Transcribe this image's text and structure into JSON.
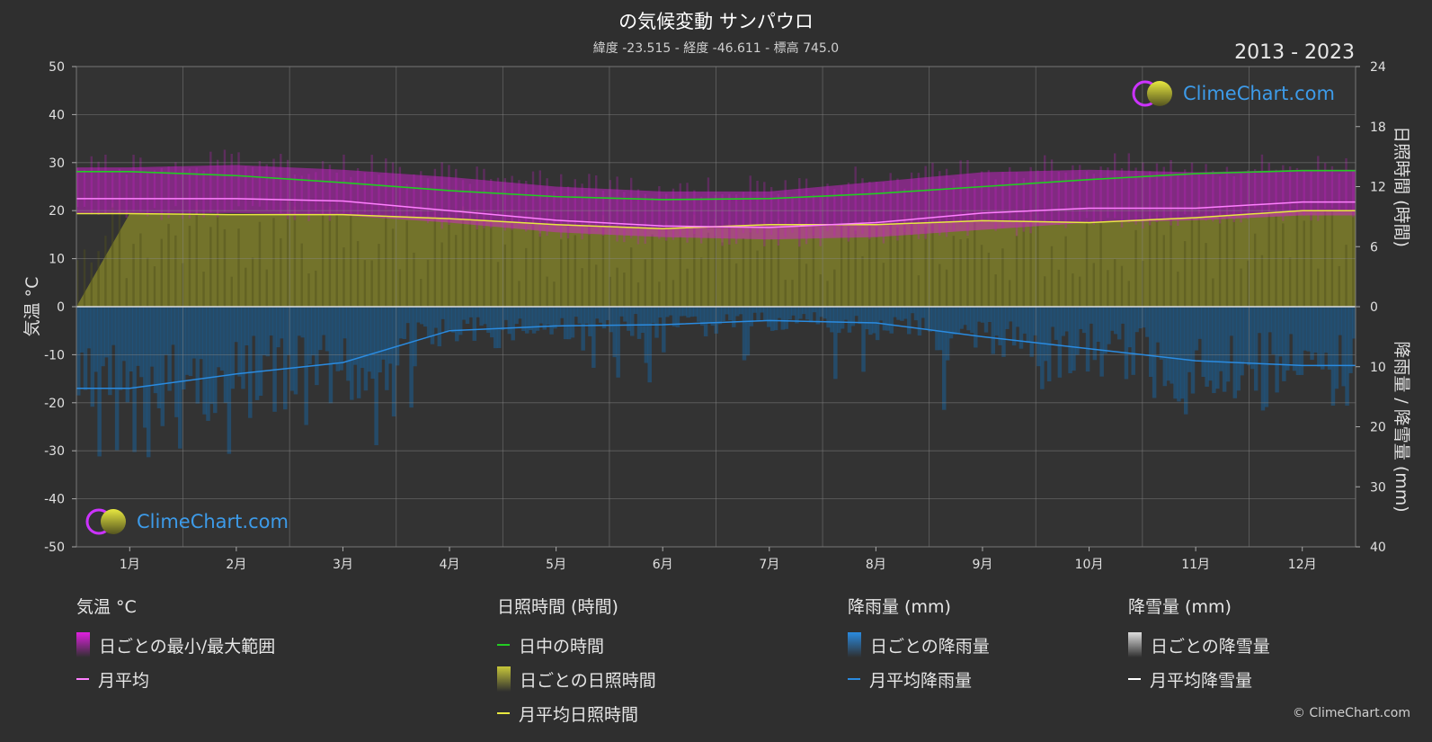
{
  "header": {
    "title": "の気候変動 サンパウロ",
    "subtitle": "緯度 -23.515 - 経度 -46.611 - 標高 745.0",
    "years": "2013 - 2023"
  },
  "logo": {
    "text": "ClimeChart.com"
  },
  "copyright": "© ClimeChart.com",
  "colors": {
    "background": "#2f2f2f",
    "temp_range": "#e020e0",
    "temp_avg": "#ff80ff",
    "daylight": "#22cc22",
    "sunshine_fill": "#8a8a2a",
    "sunshine_avg": "#e8e840",
    "rain_fill": "#1a5f96",
    "rain_avg": "#2a8be0",
    "snow_avg": "#ffffff"
  },
  "chart_data": {
    "type": "area",
    "x_ticks": [
      "1月",
      "2月",
      "3月",
      "4月",
      "5月",
      "6月",
      "7月",
      "8月",
      "9月",
      "10月",
      "11月",
      "12月"
    ],
    "left_axis": {
      "label": "気温 °C",
      "ticks": [
        50,
        40,
        30,
        20,
        10,
        0,
        -10,
        -20,
        -30,
        -40,
        -50
      ],
      "range": [
        -50,
        50
      ]
    },
    "right_axis_top": {
      "label": "日照時間 (時間)",
      "ticks": [
        24,
        18,
        12,
        6,
        0
      ],
      "range": [
        0,
        24
      ]
    },
    "right_axis_bottom": {
      "label": "降雨量 / 降雪量 (mm)",
      "ticks": [
        0,
        10,
        20,
        30,
        40
      ],
      "range": [
        0,
        40
      ]
    },
    "grid": true,
    "series": [
      {
        "name": "日ごとの最小/最大範囲",
        "kind": "range",
        "min": [
          19.5,
          19.5,
          19,
          17.5,
          15.5,
          14.5,
          14,
          14.5,
          16,
          17.5,
          18,
          19
        ],
        "max": [
          29,
          29.5,
          28.5,
          27,
          25,
          24,
          24,
          26,
          28,
          28.5,
          28,
          28.5
        ]
      },
      {
        "name": "月平均",
        "kind": "line",
        "values": [
          22.5,
          22.5,
          22,
          20,
          18,
          16.8,
          16.5,
          17.5,
          19.5,
          20.5,
          20.5,
          21.8
        ]
      },
      {
        "name": "日中の時間",
        "kind": "line",
        "values": [
          13.5,
          13.1,
          12.4,
          11.6,
          11.0,
          10.7,
          10.8,
          11.3,
          12.0,
          12.7,
          13.3,
          13.6
        ]
      },
      {
        "name": "日ごとの日照時間",
        "kind": "area",
        "values": [
          9.3,
          9.2,
          9.2,
          8.8,
          8.2,
          7.8,
          8.2,
          8.2,
          8.6,
          8.4,
          8.9,
          9.6
        ]
      },
      {
        "name": "月平均日照時間",
        "kind": "line",
        "values": [
          9.3,
          9.2,
          9.2,
          8.8,
          8.2,
          7.8,
          8.2,
          8.2,
          8.6,
          8.4,
          8.9,
          9.6
        ]
      },
      {
        "name": "月平均降雨量",
        "kind": "line",
        "values": [
          13.6,
          11.2,
          9.3,
          4,
          3.2,
          3,
          2.3,
          2.7,
          5,
          7,
          9,
          9.8
        ]
      }
    ]
  },
  "legend": {
    "groups": [
      {
        "heading": "気温 °C",
        "items": [
          {
            "label": "日ごとの最小/最大範囲",
            "swatch": "box",
            "color": "#e020e0"
          },
          {
            "label": "月平均",
            "swatch": "line",
            "color": "#ff80ff"
          }
        ]
      },
      {
        "heading": "日照時間 (時間)",
        "items": [
          {
            "label": "日中の時間",
            "swatch": "line",
            "color": "#22cc22"
          },
          {
            "label": "日ごとの日照時間",
            "swatch": "box",
            "color": "#c8c83a"
          },
          {
            "label": "月平均日照時間",
            "swatch": "line",
            "color": "#e8e840"
          }
        ]
      },
      {
        "heading": "降雨量 (mm)",
        "items": [
          {
            "label": "日ごとの降雨量",
            "swatch": "box",
            "color": "#2a8be0"
          },
          {
            "label": "月平均降雨量",
            "swatch": "line",
            "color": "#2a8be0"
          }
        ]
      },
      {
        "heading": "降雪量 (mm)",
        "items": [
          {
            "label": "日ごとの降雪量",
            "swatch": "box",
            "color": "#dddddd"
          },
          {
            "label": "月平均降雪量",
            "swatch": "line",
            "color": "#ffffff"
          }
        ]
      }
    ]
  }
}
